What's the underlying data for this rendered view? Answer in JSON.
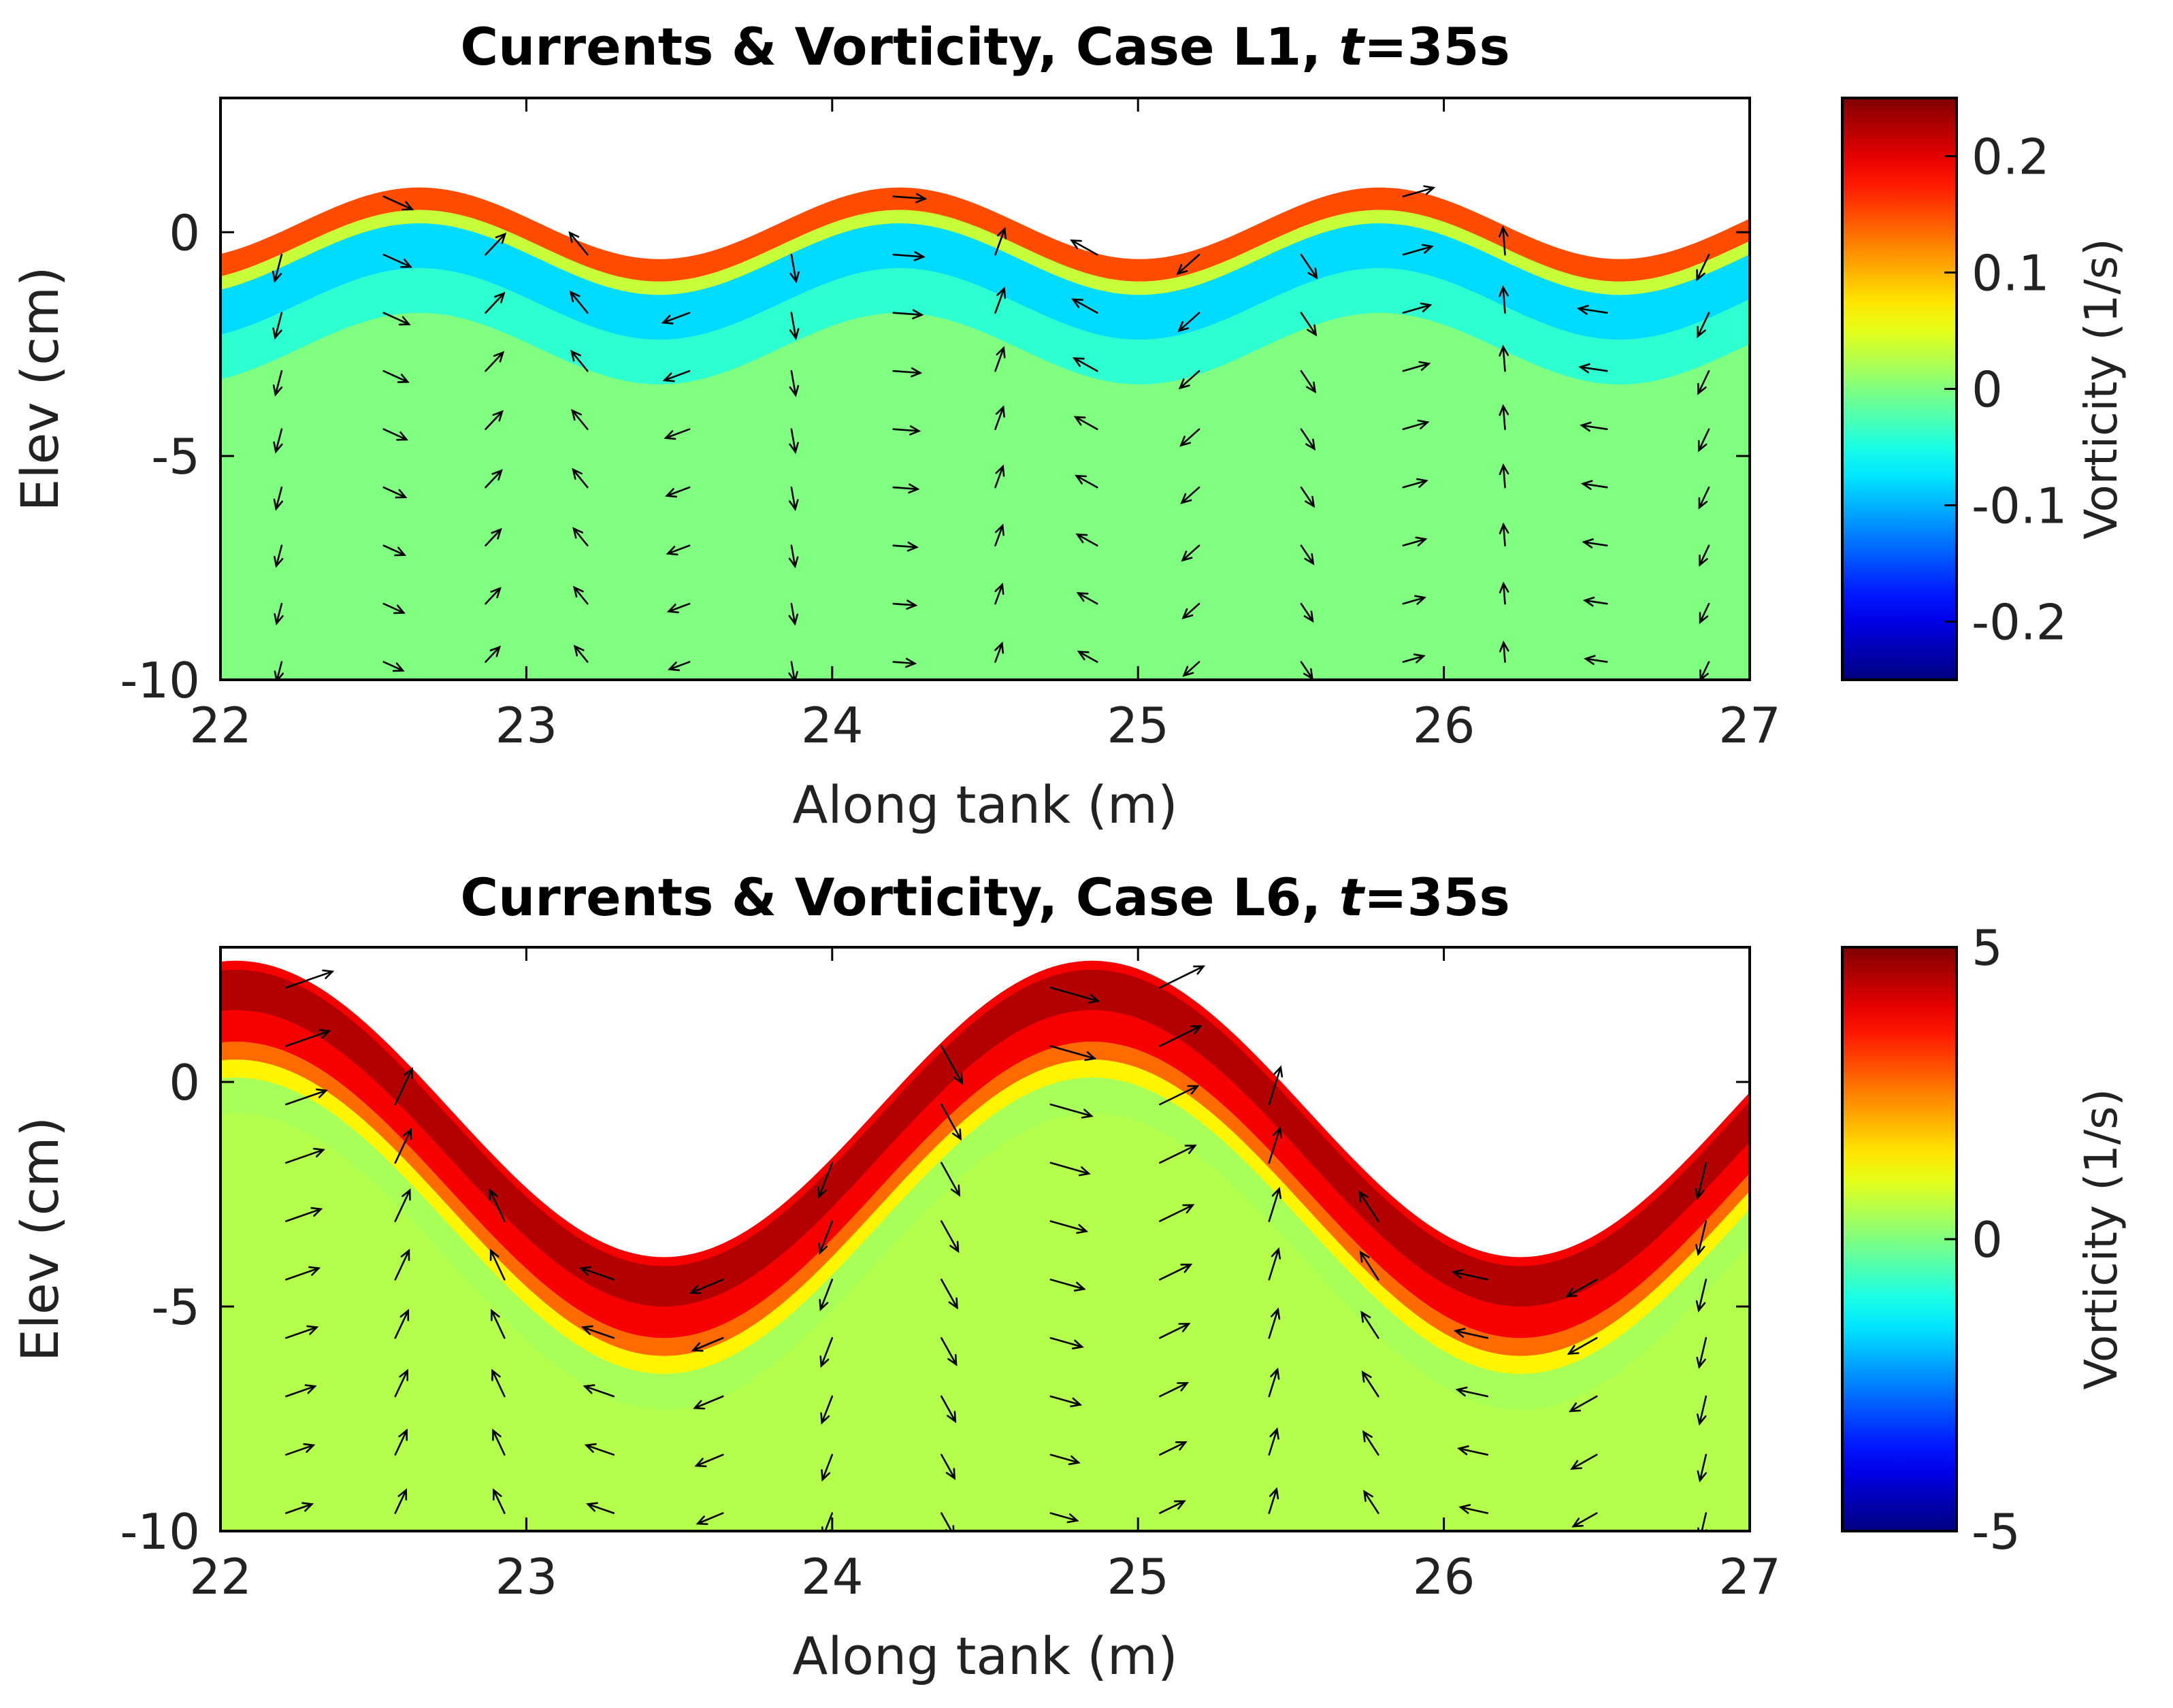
{
  "chart_data": [
    {
      "type": "vector-field-contour",
      "title_main": "Currents & Vorticity, Case L1,",
      "title_italic": "t",
      "title_suffix": "=35s",
      "xlabel": "Along tank (m)",
      "ylabel": "Elev (cm)",
      "xlim": [
        22,
        27
      ],
      "ylim": [
        -10,
        3
      ],
      "xticks": [
        22,
        23,
        24,
        25,
        26,
        27
      ],
      "yticks": [
        -10,
        -5,
        0
      ],
      "colorbar": {
        "label": "Vorticity (1/s)",
        "lim": [
          -0.25,
          0.25
        ],
        "ticks": [
          0.2,
          0.1,
          0,
          -0.1,
          -0.2
        ],
        "tick_labels": [
          "0.2",
          "0.1",
          "0",
          "-0.1",
          "-0.2"
        ]
      },
      "surface": {
        "mean_cm": 0,
        "amplitude_cm": 0.8,
        "wavelength_m": 1.57,
        "crest_x_m": [
          22.65,
          24.25,
          25.8
        ]
      },
      "vorticity_band": {
        "peak_value": 0.15,
        "below_value": -0.08,
        "interior_value": 0.0
      },
      "current_scale": 0.6
    },
    {
      "type": "vector-field-contour",
      "title_main": "Currents & Vorticity, Case L6,",
      "title_italic": "t",
      "title_suffix": "=35s",
      "xlabel": "Along tank (m)",
      "ylabel": "Elev (cm)",
      "xlim": [
        22,
        27
      ],
      "ylim": [
        -10,
        3
      ],
      "xticks": [
        22,
        23,
        24,
        25,
        26,
        27
      ],
      "yticks": [
        -10,
        -5,
        0
      ],
      "colorbar": {
        "label": "Vorticity (1/s)",
        "lim": [
          -5,
          5
        ],
        "ticks": [
          5,
          0,
          -5
        ],
        "tick_labels": [
          "5",
          "0",
          "-5"
        ]
      },
      "surface": {
        "mean_cm": -0.8,
        "amplitude_cm": 3.3,
        "wavelength_m": 2.8,
        "crest_x_m": [
          22.05,
          24.85
        ]
      },
      "vorticity_band": {
        "peak_value": 4.5,
        "below_value": 0.3,
        "interior_value": 0.5
      },
      "current_scale": 1.0
    }
  ]
}
